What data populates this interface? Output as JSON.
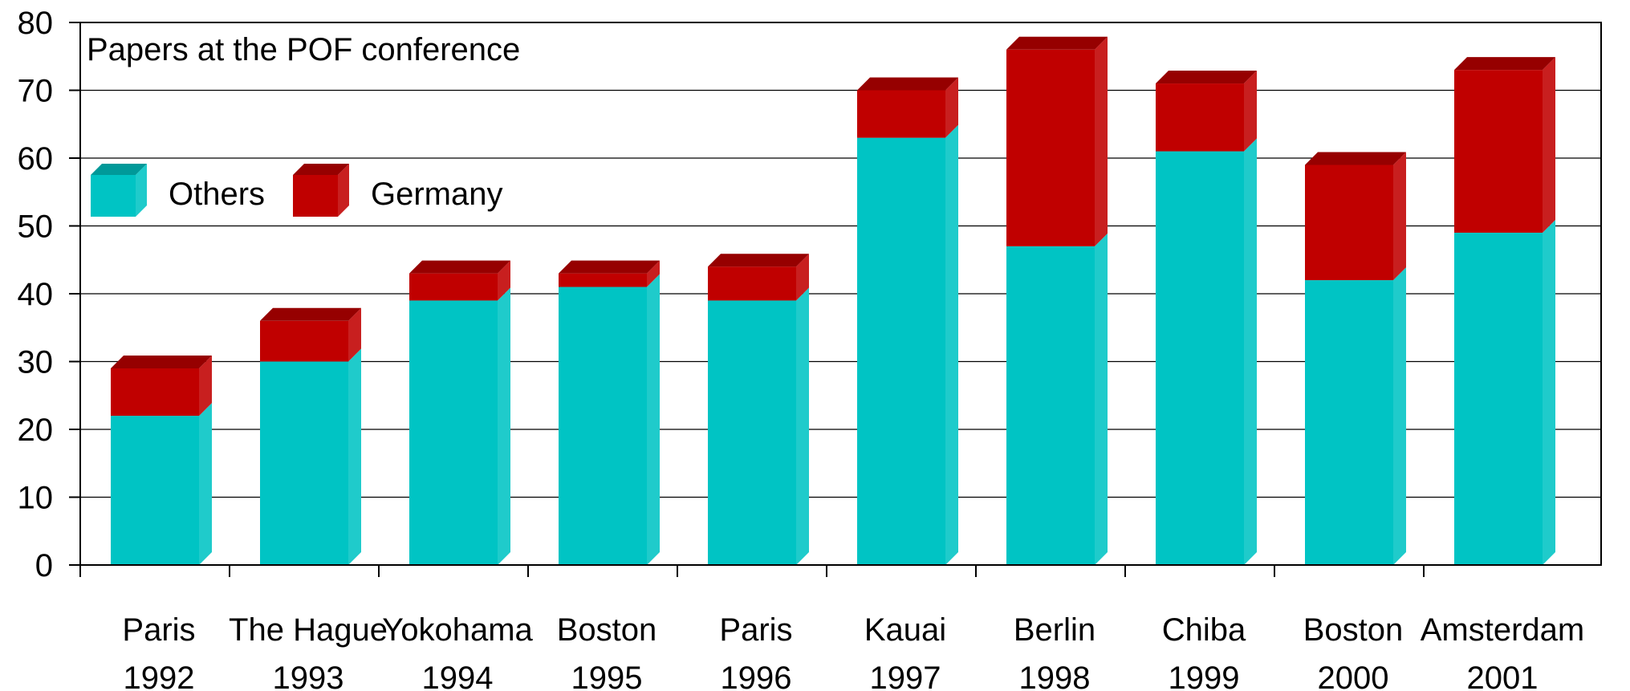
{
  "chart_data": {
    "type": "bar",
    "stacked": true,
    "title": "Papers at the POF conference",
    "xlabel": "",
    "ylabel": "",
    "ylim": [
      0,
      80
    ],
    "y_ticks": [
      0,
      10,
      20,
      30,
      40,
      50,
      60,
      70,
      80
    ],
    "grid": true,
    "legend_position": "top-left",
    "categories": [
      {
        "city": "Paris",
        "year": "1992"
      },
      {
        "city": "The Hague",
        "year": "1993"
      },
      {
        "city": "Yokohama",
        "year": "1994"
      },
      {
        "city": "Boston",
        "year": "1995"
      },
      {
        "city": "Paris",
        "year": "1996"
      },
      {
        "city": "Kauai",
        "year": "1997"
      },
      {
        "city": "Berlin",
        "year": "1998"
      },
      {
        "city": "Chiba",
        "year": "1999"
      },
      {
        "city": "Boston",
        "year": "2000"
      },
      {
        "city": "Amsterdam",
        "year": "2001"
      }
    ],
    "series": [
      {
        "name": "Others",
        "color": "#00C4C4",
        "values": [
          22,
          30,
          39,
          41,
          39,
          63,
          47,
          61,
          42,
          49
        ]
      },
      {
        "name": "Germany",
        "color": "#C00000",
        "values": [
          7,
          6,
          4,
          2,
          5,
          7,
          29,
          10,
          17,
          24
        ]
      }
    ]
  }
}
